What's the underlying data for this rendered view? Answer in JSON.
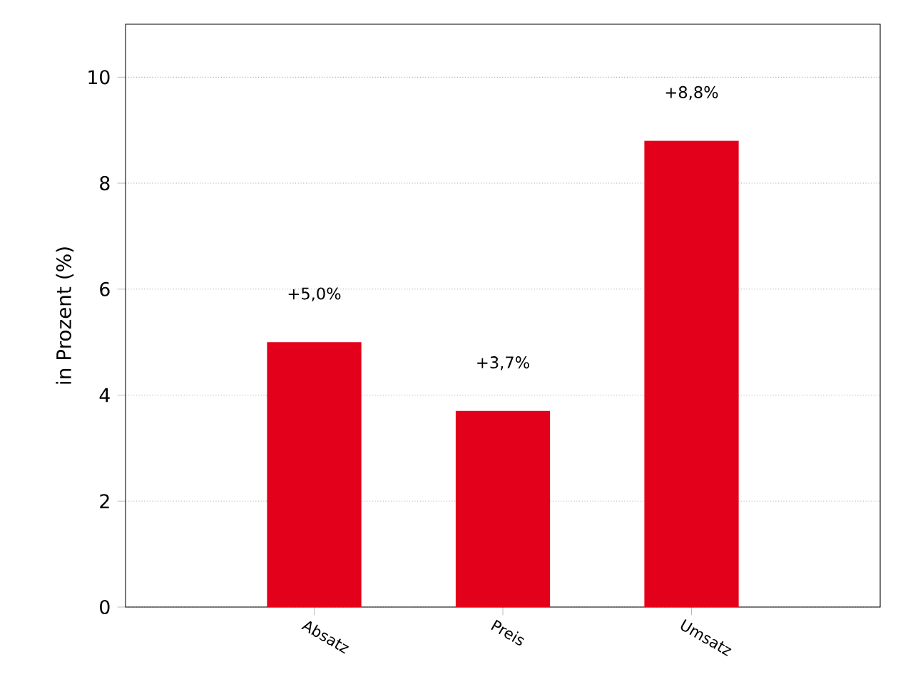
{
  "chart_data": {
    "type": "bar",
    "ylabel": "in Prozent (%)",
    "categories": [
      "Absatz",
      "Preis",
      "Umsatz"
    ],
    "values": [
      5.0,
      3.7,
      8.8
    ],
    "value_labels": [
      "+5,0%",
      "+3,7%",
      "+8,8%"
    ],
    "color": "#e2001a",
    "ylim": [
      0,
      11
    ],
    "yticks": [
      0,
      2,
      4,
      6,
      8,
      10
    ],
    "grid": "y"
  }
}
